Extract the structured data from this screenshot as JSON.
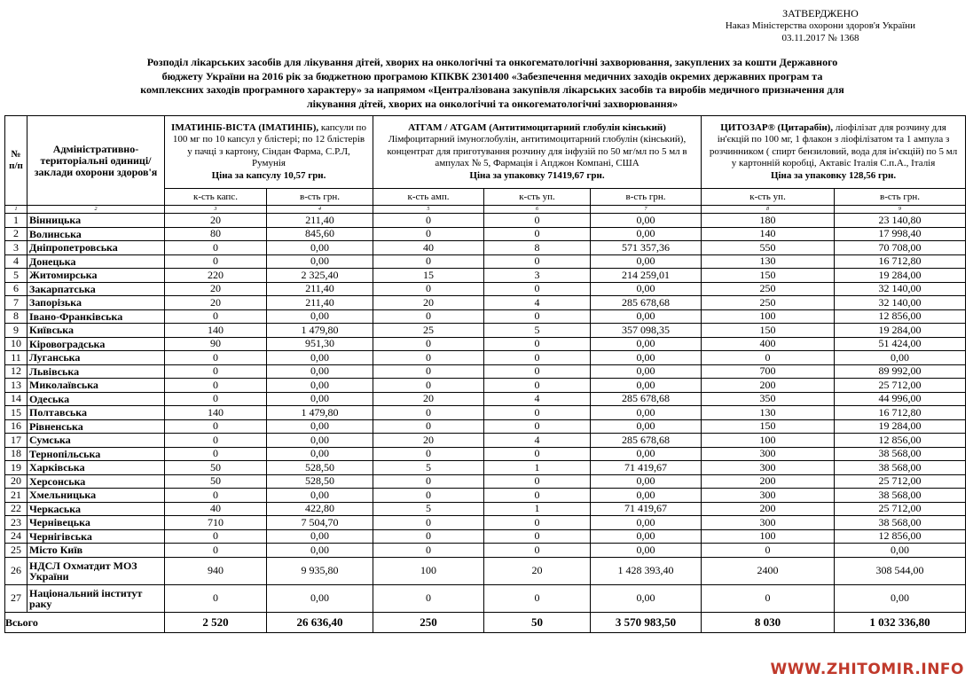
{
  "header": {
    "approved": "ЗАТВЕРДЖЕНО",
    "order": "Наказ Міністерства охорони здоров'я України",
    "date": "03.11.2017 № 1368"
  },
  "title": "Розподіл лікарських засобів  для лікування дітей, хворих на онкологічні та онкогематологічні захворювання, закуплених за кошти Державного бюджету України на 2016 рік за бюджетною програмою КПКВК 2301400 «Забезпечення медичних заходів окремих державних програм та комплексних заходів програмного характеру» за напрямом «Централізована закупівля лікарських засобів та виробів медичного призначення для лікування дітей, хворих на онкологічні та онкогематологічні захворювання»",
  "table": {
    "col_no": "№ п/п",
    "col_region": "Адміністративно-територіальні одиниці/заклади охорони здоров'я",
    "groups": [
      {
        "name": "ІМАТИНІБ-ВІСТА (ІМАТИНІБ),",
        "desc": "капсули по 100 мг по 10 капсул у блістері; по 12 блістерів у пачці з картону, Сіндан Фарма, С.Р.Л, Румунія",
        "price": "Ціна за капсулу 10,57 грн."
      },
      {
        "name": "АТГАМ / ATGAM (Антитимоцитарний глобулін кінський)",
        "desc": "Лімфоцитарний імуноглобулін, антитимоцитарний глобулін (кінський), концентрат для приготування розчину для інфузій по 50 мг/мл по 5 мл в ампулах № 5, Фармація і Апджон Компані, США",
        "price": "Ціна за упаковку 71419,67 грн."
      },
      {
        "name": "ЦИТОЗАР® (Цитарабін),",
        "desc": "ліофілізат для розчину для ін'єкцій по 100 мг,  1 флакон з ліофілізатом та 1 ампула з розчинником ( спирт бензиловий, вода для ін'єкцій) по 5 мл у картонній коробці, Актавіс Італія С.п.А., Італія",
        "price": "Ціна за упаковку 128,56 грн."
      }
    ],
    "subheaders": [
      "к-сть капс.",
      "в-сть грн.",
      "к-сть амп.",
      "к-сть уп.",
      "в-сть грн.",
      "к-сть уп.",
      "в-сть грн."
    ],
    "column_numbers": [
      "1",
      "2",
      "3",
      "4",
      "5",
      "6",
      "7",
      "8",
      "9"
    ],
    "rows": [
      [
        "1",
        "Вінницька",
        "20",
        "211,40",
        "0",
        "0",
        "0,00",
        "180",
        "23 140,80"
      ],
      [
        "2",
        "Волинська",
        "80",
        "845,60",
        "0",
        "0",
        "0,00",
        "140",
        "17 998,40"
      ],
      [
        "3",
        "Дніпропетровська",
        "0",
        "0,00",
        "40",
        "8",
        "571 357,36",
        "550",
        "70 708,00"
      ],
      [
        "4",
        "Донецька",
        "0",
        "0,00",
        "0",
        "0",
        "0,00",
        "130",
        "16 712,80"
      ],
      [
        "5",
        "Житомирська",
        "220",
        "2 325,40",
        "15",
        "3",
        "214 259,01",
        "150",
        "19 284,00"
      ],
      [
        "6",
        "Закарпатська",
        "20",
        "211,40",
        "0",
        "0",
        "0,00",
        "250",
        "32 140,00"
      ],
      [
        "7",
        "Запорізька",
        "20",
        "211,40",
        "20",
        "4",
        "285 678,68",
        "250",
        "32 140,00"
      ],
      [
        "8",
        "Івано-Франківська",
        "0",
        "0,00",
        "0",
        "0",
        "0,00",
        "100",
        "12 856,00"
      ],
      [
        "9",
        "Київська",
        "140",
        "1 479,80",
        "25",
        "5",
        "357 098,35",
        "150",
        "19 284,00"
      ],
      [
        "10",
        "Кіровоградська",
        "90",
        "951,30",
        "0",
        "0",
        "0,00",
        "400",
        "51 424,00"
      ],
      [
        "11",
        "Луганська",
        "0",
        "0,00",
        "0",
        "0",
        "0,00",
        "0",
        "0,00"
      ],
      [
        "12",
        "Львівська",
        "0",
        "0,00",
        "0",
        "0",
        "0,00",
        "700",
        "89 992,00"
      ],
      [
        "13",
        "Миколаївська",
        "0",
        "0,00",
        "0",
        "0",
        "0,00",
        "200",
        "25 712,00"
      ],
      [
        "14",
        "Одеська",
        "0",
        "0,00",
        "20",
        "4",
        "285 678,68",
        "350",
        "44 996,00"
      ],
      [
        "15",
        "Полтавська",
        "140",
        "1 479,80",
        "0",
        "0",
        "0,00",
        "130",
        "16 712,80"
      ],
      [
        "16",
        "Рівненська",
        "0",
        "0,00",
        "0",
        "0",
        "0,00",
        "150",
        "19 284,00"
      ],
      [
        "17",
        "Сумська",
        "0",
        "0,00",
        "20",
        "4",
        "285 678,68",
        "100",
        "12 856,00"
      ],
      [
        "18",
        "Тернопільська",
        "0",
        "0,00",
        "0",
        "0",
        "0,00",
        "300",
        "38 568,00"
      ],
      [
        "19",
        "Харківська",
        "50",
        "528,50",
        "5",
        "1",
        "71 419,67",
        "300",
        "38 568,00"
      ],
      [
        "20",
        "Херсонська",
        "50",
        "528,50",
        "0",
        "0",
        "0,00",
        "200",
        "25 712,00"
      ],
      [
        "21",
        "Хмельницька",
        "0",
        "0,00",
        "0",
        "0",
        "0,00",
        "300",
        "38 568,00"
      ],
      [
        "22",
        "Черкаська",
        "40",
        "422,80",
        "5",
        "1",
        "71 419,67",
        "200",
        "25 712,00"
      ],
      [
        "23",
        "Чернівецька",
        "710",
        "7 504,70",
        "0",
        "0",
        "0,00",
        "300",
        "38 568,00"
      ],
      [
        "24",
        "Чернігівська",
        "0",
        "0,00",
        "0",
        "0",
        "0,00",
        "100",
        "12 856,00"
      ],
      [
        "25",
        "Місто Київ",
        "0",
        "0,00",
        "0",
        "0",
        "0,00",
        "0",
        "0,00"
      ],
      [
        "26",
        "НДСЛ Охматдит МОЗ України",
        "940",
        "9 935,80",
        "100",
        "20",
        "1 428 393,40",
        "2400",
        "308 544,00"
      ],
      [
        "27",
        "Національний інститут раку",
        "0",
        "0,00",
        "0",
        "0",
        "0,00",
        "0",
        "0,00"
      ]
    ],
    "total": [
      "Всього",
      "2 520",
      "26 636,40",
      "250",
      "50",
      "3 570 983,50",
      "8 030",
      "1 032 336,80"
    ]
  },
  "watermark": "WWW.ZHITOMIR.INFO"
}
